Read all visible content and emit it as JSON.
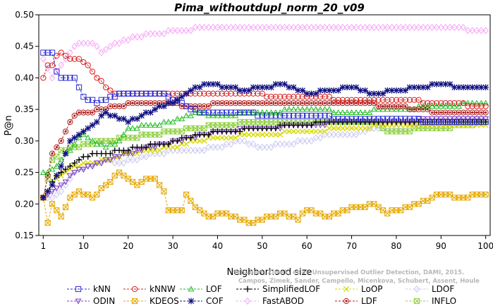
{
  "chart_data": {
    "type": "line",
    "title": "Pima_withoutdupl_norm_20_v09",
    "xlabel": "Neighborhood size",
    "ylabel": "P@n",
    "xlim": [
      0,
      101
    ],
    "ylim": [
      0.15,
      0.5
    ],
    "xticks": [
      1,
      10,
      20,
      30,
      40,
      50,
      60,
      70,
      80,
      90,
      100
    ],
    "yticks": [
      0.15,
      0.2,
      0.25,
      0.3,
      0.35,
      0.4,
      0.45,
      0.5
    ],
    "grid": false,
    "legend_position": "bottom",
    "watermark": [
      "Schubert, Zimek, et al. Unsupervised Outlier Detection, DAMI, 2015.",
      "Campos, Zimek, Sander, Campello, Micenkova, Schubert, Assent, Houle"
    ],
    "series": [
      {
        "name": "kNN",
        "color": "#2b2bd6",
        "marker": "square",
        "anchors": [
          [
            1,
            0.44
          ],
          [
            3,
            0.44
          ],
          [
            4,
            0.41
          ],
          [
            5,
            0.4
          ],
          [
            8,
            0.4
          ],
          [
            10,
            0.37
          ],
          [
            13,
            0.36
          ],
          [
            16,
            0.37
          ],
          [
            20,
            0.375
          ],
          [
            28,
            0.375
          ],
          [
            33,
            0.355
          ],
          [
            36,
            0.345
          ],
          [
            60,
            0.34
          ],
          [
            70,
            0.335
          ],
          [
            100,
            0.33
          ]
        ]
      },
      {
        "name": "ODIN",
        "color": "#7b3fc4",
        "marker": "triangle-down",
        "anchors": [
          [
            1,
            0.21
          ],
          [
            3,
            0.22
          ],
          [
            5,
            0.23
          ],
          [
            8,
            0.25
          ],
          [
            10,
            0.255
          ],
          [
            14,
            0.265
          ],
          [
            18,
            0.275
          ],
          [
            22,
            0.285
          ],
          [
            28,
            0.295
          ],
          [
            34,
            0.305
          ],
          [
            40,
            0.315
          ],
          [
            50,
            0.32
          ],
          [
            60,
            0.325
          ],
          [
            70,
            0.33
          ],
          [
            80,
            0.33
          ],
          [
            90,
            0.335
          ],
          [
            100,
            0.335
          ]
        ]
      },
      {
        "name": "kNNW",
        "color": "#d62020",
        "marker": "circle",
        "anchors": [
          [
            1,
            0.4
          ],
          [
            2,
            0.42
          ],
          [
            3,
            0.42
          ],
          [
            4,
            0.435
          ],
          [
            5,
            0.44
          ],
          [
            7,
            0.43
          ],
          [
            9,
            0.43
          ],
          [
            11,
            0.42
          ],
          [
            13,
            0.4
          ],
          [
            15,
            0.385
          ],
          [
            17,
            0.375
          ],
          [
            25,
            0.375
          ],
          [
            40,
            0.375
          ],
          [
            60,
            0.37
          ],
          [
            70,
            0.365
          ],
          [
            80,
            0.365
          ],
          [
            90,
            0.36
          ],
          [
            100,
            0.355
          ]
        ]
      },
      {
        "name": "KDEOS",
        "color": "#e6a800",
        "marker": "square-x",
        "anchors": [
          [
            1,
            0.21
          ],
          [
            2,
            0.17
          ],
          [
            3,
            0.2
          ],
          [
            4,
            0.19
          ],
          [
            5,
            0.18
          ],
          [
            7,
            0.21
          ],
          [
            9,
            0.22
          ],
          [
            12,
            0.21
          ],
          [
            15,
            0.23
          ],
          [
            18,
            0.25
          ],
          [
            20,
            0.24
          ],
          [
            22,
            0.23
          ],
          [
            24,
            0.24
          ],
          [
            26,
            0.24
          ],
          [
            28,
            0.22
          ],
          [
            29,
            0.19
          ],
          [
            32,
            0.19
          ],
          [
            33,
            0.215
          ],
          [
            35,
            0.195
          ],
          [
            38,
            0.18
          ],
          [
            42,
            0.185
          ],
          [
            45,
            0.175
          ],
          [
            48,
            0.17
          ],
          [
            52,
            0.18
          ],
          [
            55,
            0.185
          ],
          [
            58,
            0.175
          ],
          [
            60,
            0.19
          ],
          [
            65,
            0.18
          ],
          [
            68,
            0.19
          ],
          [
            72,
            0.195
          ],
          [
            75,
            0.2
          ],
          [
            78,
            0.185
          ],
          [
            80,
            0.19
          ],
          [
            85,
            0.2
          ],
          [
            88,
            0.21
          ],
          [
            90,
            0.215
          ],
          [
            95,
            0.21
          ],
          [
            98,
            0.215
          ],
          [
            100,
            0.215
          ]
        ]
      },
      {
        "name": "LOF",
        "color": "#22bb22",
        "marker": "triangle-up",
        "anchors": [
          [
            1,
            0.25
          ],
          [
            2,
            0.25
          ],
          [
            4,
            0.26
          ],
          [
            6,
            0.28
          ],
          [
            8,
            0.295
          ],
          [
            10,
            0.31
          ],
          [
            13,
            0.295
          ],
          [
            15,
            0.29
          ],
          [
            18,
            0.3
          ],
          [
            20,
            0.32
          ],
          [
            25,
            0.325
          ],
          [
            30,
            0.33
          ],
          [
            35,
            0.345
          ],
          [
            40,
            0.34
          ],
          [
            50,
            0.345
          ],
          [
            60,
            0.35
          ],
          [
            70,
            0.345
          ],
          [
            80,
            0.35
          ],
          [
            90,
            0.355
          ],
          [
            100,
            0.36
          ]
        ]
      },
      {
        "name": "COF",
        "color": "#101080",
        "marker": "star",
        "anchors": [
          [
            1,
            0.21
          ],
          [
            3,
            0.23
          ],
          [
            5,
            0.26
          ],
          [
            7,
            0.3
          ],
          [
            9,
            0.31
          ],
          [
            11,
            0.32
          ],
          [
            13,
            0.33
          ],
          [
            15,
            0.345
          ],
          [
            18,
            0.335
          ],
          [
            20,
            0.33
          ],
          [
            23,
            0.34
          ],
          [
            26,
            0.35
          ],
          [
            30,
            0.36
          ],
          [
            33,
            0.375
          ],
          [
            35,
            0.385
          ],
          [
            38,
            0.39
          ],
          [
            42,
            0.385
          ],
          [
            46,
            0.38
          ],
          [
            50,
            0.385
          ],
          [
            55,
            0.39
          ],
          [
            60,
            0.375
          ],
          [
            65,
            0.38
          ],
          [
            70,
            0.385
          ],
          [
            75,
            0.375
          ],
          [
            80,
            0.38
          ],
          [
            85,
            0.385
          ],
          [
            90,
            0.39
          ],
          [
            95,
            0.385
          ],
          [
            100,
            0.385
          ]
        ]
      },
      {
        "name": "SimplifiedLOF",
        "color": "#000000",
        "marker": "plus",
        "anchors": [
          [
            1,
            0.21
          ],
          [
            3,
            0.235
          ],
          [
            5,
            0.25
          ],
          [
            8,
            0.265
          ],
          [
            10,
            0.275
          ],
          [
            14,
            0.28
          ],
          [
            18,
            0.285
          ],
          [
            22,
            0.29
          ],
          [
            28,
            0.295
          ],
          [
            33,
            0.305
          ],
          [
            36,
            0.31
          ],
          [
            42,
            0.315
          ],
          [
            50,
            0.32
          ],
          [
            58,
            0.325
          ],
          [
            65,
            0.33
          ],
          [
            75,
            0.33
          ],
          [
            85,
            0.33
          ],
          [
            95,
            0.33
          ],
          [
            100,
            0.33
          ]
        ]
      },
      {
        "name": "FastABOD",
        "color": "#f6a8f6",
        "marker": "diamond",
        "anchors": [
          [
            1,
            0.43
          ],
          [
            3,
            0.4
          ],
          [
            5,
            0.42
          ],
          [
            7,
            0.44
          ],
          [
            9,
            0.455
          ],
          [
            12,
            0.455
          ],
          [
            14,
            0.44
          ],
          [
            16,
            0.45
          ],
          [
            19,
            0.46
          ],
          [
            22,
            0.465
          ],
          [
            26,
            0.47
          ],
          [
            32,
            0.475
          ],
          [
            38,
            0.48
          ],
          [
            50,
            0.48
          ],
          [
            60,
            0.48
          ],
          [
            70,
            0.48
          ],
          [
            80,
            0.48
          ],
          [
            90,
            0.48
          ],
          [
            100,
            0.475
          ]
        ]
      },
      {
        "name": "LoOP",
        "color": "#d8d800",
        "marker": "x",
        "anchors": [
          [
            1,
            0.21
          ],
          [
            3,
            0.23
          ],
          [
            5,
            0.245
          ],
          [
            8,
            0.26
          ],
          [
            12,
            0.265
          ],
          [
            16,
            0.27
          ],
          [
            20,
            0.28
          ],
          [
            25,
            0.285
          ],
          [
            30,
            0.29
          ],
          [
            35,
            0.3
          ],
          [
            40,
            0.305
          ],
          [
            50,
            0.31
          ],
          [
            60,
            0.315
          ],
          [
            70,
            0.32
          ],
          [
            80,
            0.325
          ],
          [
            90,
            0.325
          ],
          [
            100,
            0.325
          ]
        ]
      },
      {
        "name": "LDF",
        "color": "#b02020",
        "marker": "circle-filled",
        "anchors": [
          [
            1,
            0.21
          ],
          [
            3,
            0.28
          ],
          [
            5,
            0.3
          ],
          [
            7,
            0.33
          ],
          [
            9,
            0.345
          ],
          [
            11,
            0.345
          ],
          [
            14,
            0.35
          ],
          [
            18,
            0.355
          ],
          [
            22,
            0.36
          ],
          [
            28,
            0.36
          ],
          [
            35,
            0.355
          ],
          [
            42,
            0.36
          ],
          [
            50,
            0.36
          ],
          [
            60,
            0.36
          ],
          [
            70,
            0.36
          ],
          [
            80,
            0.355
          ],
          [
            90,
            0.345
          ],
          [
            100,
            0.345
          ]
        ]
      },
      {
        "name": "LDOF",
        "color": "#c8c8f0",
        "marker": "diamond",
        "anchors": [
          [
            1,
            0.21
          ],
          [
            3,
            0.21
          ],
          [
            5,
            0.22
          ],
          [
            7,
            0.24
          ],
          [
            9,
            0.255
          ],
          [
            12,
            0.26
          ],
          [
            15,
            0.27
          ],
          [
            18,
            0.265
          ],
          [
            22,
            0.27
          ],
          [
            26,
            0.28
          ],
          [
            30,
            0.285
          ],
          [
            35,
            0.285
          ],
          [
            40,
            0.29
          ],
          [
            45,
            0.3
          ],
          [
            50,
            0.29
          ],
          [
            55,
            0.295
          ],
          [
            60,
            0.3
          ],
          [
            65,
            0.31
          ],
          [
            70,
            0.31
          ],
          [
            75,
            0.32
          ],
          [
            80,
            0.32
          ],
          [
            85,
            0.325
          ],
          [
            90,
            0.33
          ],
          [
            95,
            0.335
          ],
          [
            100,
            0.335
          ]
        ]
      },
      {
        "name": "INFLO",
        "color": "#90d040",
        "marker": "square-x",
        "anchors": [
          [
            1,
            0.21
          ],
          [
            3,
            0.27
          ],
          [
            5,
            0.285
          ],
          [
            8,
            0.29
          ],
          [
            11,
            0.295
          ],
          [
            15,
            0.3
          ],
          [
            20,
            0.305
          ],
          [
            25,
            0.31
          ],
          [
            30,
            0.315
          ],
          [
            35,
            0.32
          ],
          [
            40,
            0.325
          ],
          [
            50,
            0.33
          ],
          [
            60,
            0.33
          ],
          [
            70,
            0.33
          ],
          [
            75,
            0.33
          ],
          [
            78,
            0.315
          ],
          [
            82,
            0.315
          ],
          [
            85,
            0.32
          ],
          [
            90,
            0.32
          ],
          [
            95,
            0.325
          ],
          [
            100,
            0.33
          ]
        ]
      }
    ]
  }
}
